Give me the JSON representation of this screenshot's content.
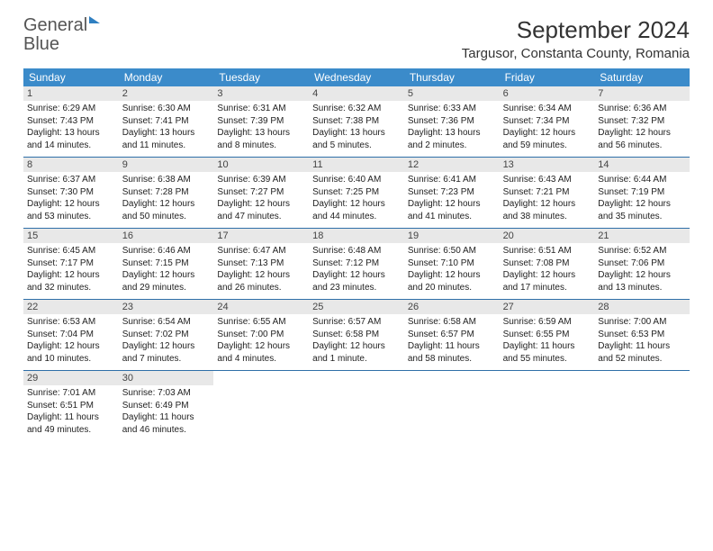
{
  "logo": {
    "text1": "General",
    "text2": "Blue"
  },
  "title": "September 2024",
  "location": "Targusor, Constanta County, Romania",
  "colors": {
    "header_bg": "#3b8bca",
    "header_text": "#ffffff",
    "daynum_bg": "#e8e8e8",
    "row_border": "#2f6fa8",
    "logo_blue": "#2f7fc1"
  },
  "daysOfWeek": [
    "Sunday",
    "Monday",
    "Tuesday",
    "Wednesday",
    "Thursday",
    "Friday",
    "Saturday"
  ],
  "weeks": [
    [
      {
        "n": "1",
        "sr": "6:29 AM",
        "ss": "7:43 PM",
        "dl": "13 hours and 14 minutes."
      },
      {
        "n": "2",
        "sr": "6:30 AM",
        "ss": "7:41 PM",
        "dl": "13 hours and 11 minutes."
      },
      {
        "n": "3",
        "sr": "6:31 AM",
        "ss": "7:39 PM",
        "dl": "13 hours and 8 minutes."
      },
      {
        "n": "4",
        "sr": "6:32 AM",
        "ss": "7:38 PM",
        "dl": "13 hours and 5 minutes."
      },
      {
        "n": "5",
        "sr": "6:33 AM",
        "ss": "7:36 PM",
        "dl": "13 hours and 2 minutes."
      },
      {
        "n": "6",
        "sr": "6:34 AM",
        "ss": "7:34 PM",
        "dl": "12 hours and 59 minutes."
      },
      {
        "n": "7",
        "sr": "6:36 AM",
        "ss": "7:32 PM",
        "dl": "12 hours and 56 minutes."
      }
    ],
    [
      {
        "n": "8",
        "sr": "6:37 AM",
        "ss": "7:30 PM",
        "dl": "12 hours and 53 minutes."
      },
      {
        "n": "9",
        "sr": "6:38 AM",
        "ss": "7:28 PM",
        "dl": "12 hours and 50 minutes."
      },
      {
        "n": "10",
        "sr": "6:39 AM",
        "ss": "7:27 PM",
        "dl": "12 hours and 47 minutes."
      },
      {
        "n": "11",
        "sr": "6:40 AM",
        "ss": "7:25 PM",
        "dl": "12 hours and 44 minutes."
      },
      {
        "n": "12",
        "sr": "6:41 AM",
        "ss": "7:23 PM",
        "dl": "12 hours and 41 minutes."
      },
      {
        "n": "13",
        "sr": "6:43 AM",
        "ss": "7:21 PM",
        "dl": "12 hours and 38 minutes."
      },
      {
        "n": "14",
        "sr": "6:44 AM",
        "ss": "7:19 PM",
        "dl": "12 hours and 35 minutes."
      }
    ],
    [
      {
        "n": "15",
        "sr": "6:45 AM",
        "ss": "7:17 PM",
        "dl": "12 hours and 32 minutes."
      },
      {
        "n": "16",
        "sr": "6:46 AM",
        "ss": "7:15 PM",
        "dl": "12 hours and 29 minutes."
      },
      {
        "n": "17",
        "sr": "6:47 AM",
        "ss": "7:13 PM",
        "dl": "12 hours and 26 minutes."
      },
      {
        "n": "18",
        "sr": "6:48 AM",
        "ss": "7:12 PM",
        "dl": "12 hours and 23 minutes."
      },
      {
        "n": "19",
        "sr": "6:50 AM",
        "ss": "7:10 PM",
        "dl": "12 hours and 20 minutes."
      },
      {
        "n": "20",
        "sr": "6:51 AM",
        "ss": "7:08 PM",
        "dl": "12 hours and 17 minutes."
      },
      {
        "n": "21",
        "sr": "6:52 AM",
        "ss": "7:06 PM",
        "dl": "12 hours and 13 minutes."
      }
    ],
    [
      {
        "n": "22",
        "sr": "6:53 AM",
        "ss": "7:04 PM",
        "dl": "12 hours and 10 minutes."
      },
      {
        "n": "23",
        "sr": "6:54 AM",
        "ss": "7:02 PM",
        "dl": "12 hours and 7 minutes."
      },
      {
        "n": "24",
        "sr": "6:55 AM",
        "ss": "7:00 PM",
        "dl": "12 hours and 4 minutes."
      },
      {
        "n": "25",
        "sr": "6:57 AM",
        "ss": "6:58 PM",
        "dl": "12 hours and 1 minute."
      },
      {
        "n": "26",
        "sr": "6:58 AM",
        "ss": "6:57 PM",
        "dl": "11 hours and 58 minutes."
      },
      {
        "n": "27",
        "sr": "6:59 AM",
        "ss": "6:55 PM",
        "dl": "11 hours and 55 minutes."
      },
      {
        "n": "28",
        "sr": "7:00 AM",
        "ss": "6:53 PM",
        "dl": "11 hours and 52 minutes."
      }
    ],
    [
      {
        "n": "29",
        "sr": "7:01 AM",
        "ss": "6:51 PM",
        "dl": "11 hours and 49 minutes."
      },
      {
        "n": "30",
        "sr": "7:03 AM",
        "ss": "6:49 PM",
        "dl": "11 hours and 46 minutes."
      },
      null,
      null,
      null,
      null,
      null
    ]
  ],
  "labels": {
    "sunrise": "Sunrise: ",
    "sunset": "Sunset: ",
    "daylight": "Daylight: "
  }
}
